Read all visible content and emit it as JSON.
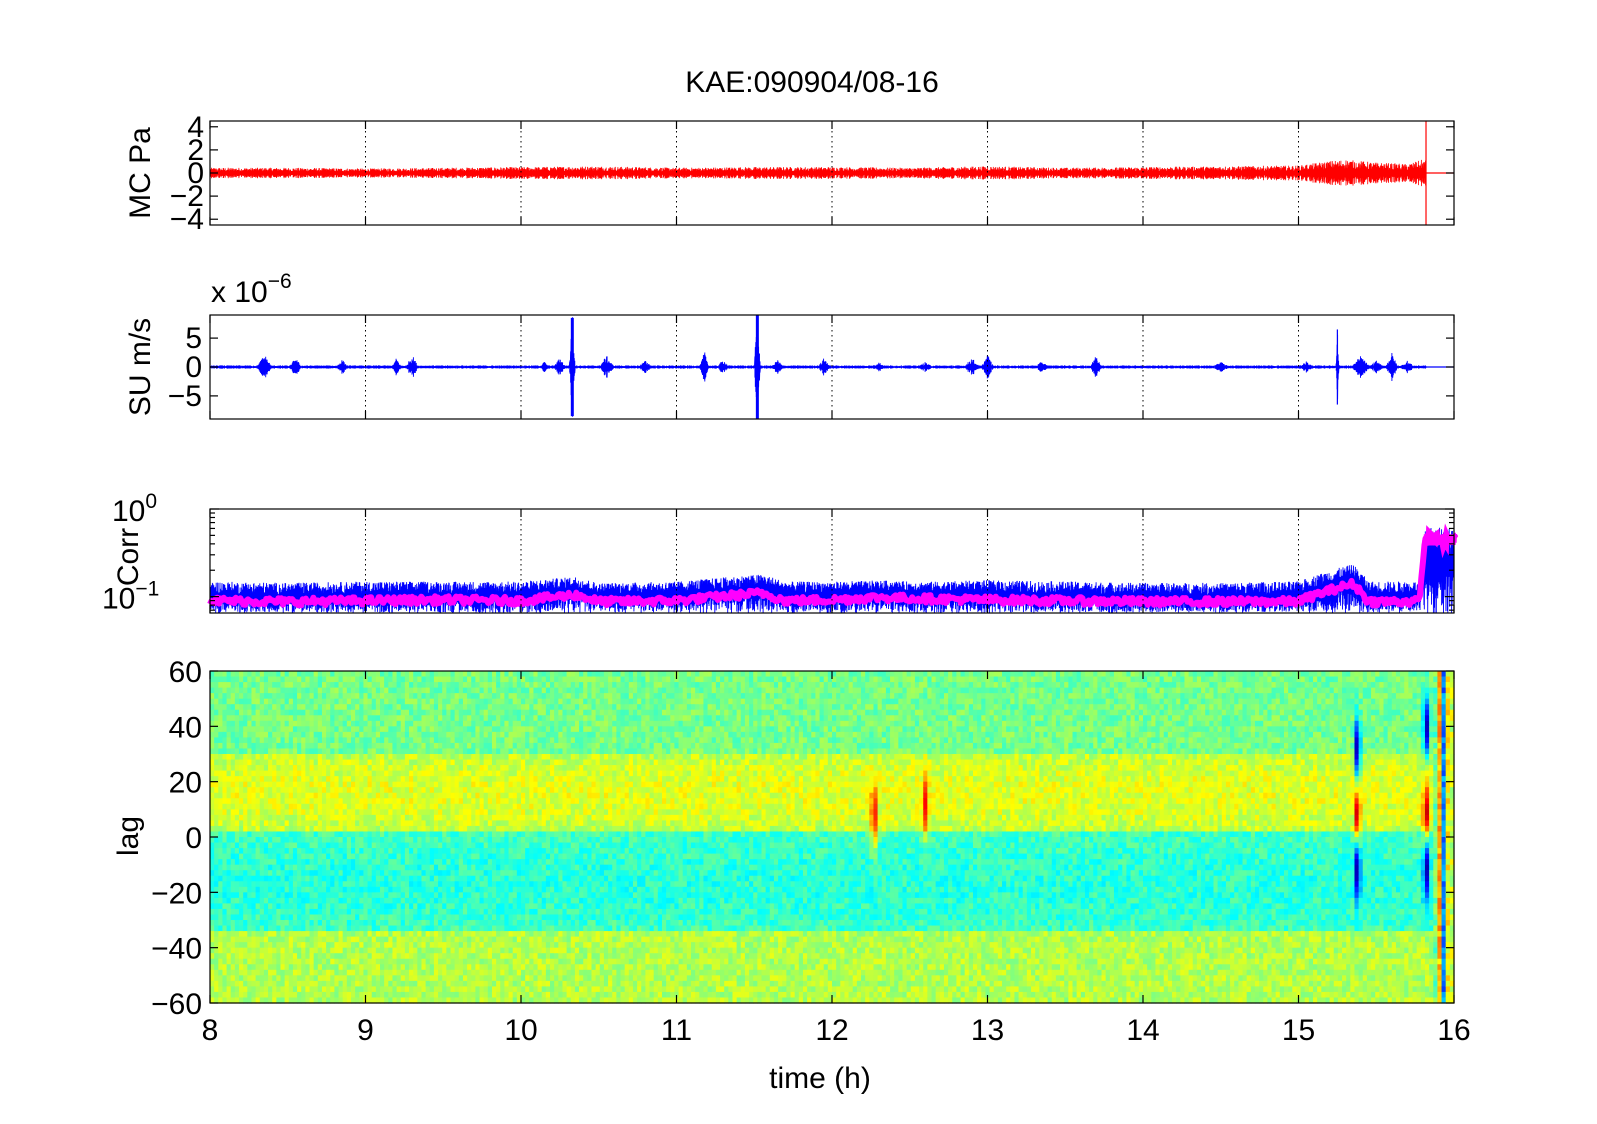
{
  "chart_data": [
    {
      "type": "line",
      "title": "KAE:090904/08-16",
      "ylabel": "MC Pa",
      "xlim": [
        8,
        16
      ],
      "ylim": [
        -4.5,
        4.5
      ],
      "yticks": [
        -4,
        -2,
        0,
        2,
        4
      ],
      "ytick_labels": [
        "−4",
        "−2",
        "0",
        "2",
        "4"
      ],
      "grid": "x",
      "series": [
        {
          "color": "#ff0000",
          "end_x": 15.82,
          "envelope": [
            [
              8.0,
              0.35
            ],
            [
              8.5,
              0.35
            ],
            [
              9.0,
              0.3
            ],
            [
              9.5,
              0.35
            ],
            [
              10.0,
              0.4
            ],
            [
              10.5,
              0.45
            ],
            [
              11.0,
              0.35
            ],
            [
              11.5,
              0.4
            ],
            [
              12.0,
              0.4
            ],
            [
              12.5,
              0.35
            ],
            [
              13.0,
              0.45
            ],
            [
              13.5,
              0.35
            ],
            [
              14.0,
              0.4
            ],
            [
              14.5,
              0.45
            ],
            [
              15.0,
              0.5
            ],
            [
              15.2,
              0.8
            ],
            [
              15.3,
              0.9
            ],
            [
              15.5,
              0.7
            ],
            [
              15.7,
              0.6
            ],
            [
              15.8,
              0.9
            ]
          ],
          "spike_x": 15.82,
          "spike_y": [
            -4.5,
            4.5
          ]
        }
      ]
    },
    {
      "type": "line",
      "ylabel": "SU m/s",
      "y_multiplier": "x 10",
      "y_exponent": "−6",
      "xlim": [
        8,
        16
      ],
      "ylim": [
        -9,
        9
      ],
      "yticks": [
        -5,
        0,
        5
      ],
      "ytick_labels": [
        "−5",
        "0",
        "5"
      ],
      "grid": "x",
      "series": [
        {
          "color": "#0000ff",
          "end_x": 15.82,
          "baseline_amp": 0.25,
          "bursts": [
            [
              8.35,
              2.0,
              0.05
            ],
            [
              8.55,
              1.5,
              0.04
            ],
            [
              8.85,
              1.2,
              0.04
            ],
            [
              9.2,
              1.5,
              0.03
            ],
            [
              9.3,
              2.0,
              0.04
            ],
            [
              10.15,
              0.9,
              0.03
            ],
            [
              10.25,
              1.5,
              0.04
            ],
            [
              10.33,
              8.5,
              0.02
            ],
            [
              10.55,
              1.8,
              0.05
            ],
            [
              10.8,
              1.0,
              0.05
            ],
            [
              11.18,
              2.5,
              0.03
            ],
            [
              11.3,
              1.2,
              0.04
            ],
            [
              11.52,
              9.0,
              0.02
            ],
            [
              11.65,
              1.2,
              0.04
            ],
            [
              11.95,
              1.5,
              0.04
            ],
            [
              12.3,
              0.8,
              0.05
            ],
            [
              12.6,
              0.8,
              0.05
            ],
            [
              12.9,
              1.5,
              0.05
            ],
            [
              13.0,
              2.0,
              0.04
            ],
            [
              13.35,
              0.9,
              0.05
            ],
            [
              13.7,
              2.0,
              0.04
            ],
            [
              14.5,
              0.8,
              0.06
            ],
            [
              15.05,
              0.9,
              0.05
            ],
            [
              15.25,
              6.5,
              0.01
            ],
            [
              15.4,
              1.8,
              0.06
            ],
            [
              15.5,
              1.0,
              0.05
            ],
            [
              15.6,
              2.3,
              0.04
            ],
            [
              15.7,
              1.0,
              0.05
            ]
          ]
        }
      ]
    },
    {
      "type": "line",
      "ylabel": "Corr",
      "y_scale": "log",
      "xlim": [
        8,
        16
      ],
      "ylim": [
        0.065,
        1.0
      ],
      "yticks": [
        0.1,
        1.0
      ],
      "ytick_base": "10",
      "ytick_exponents": [
        "−1",
        "0"
      ],
      "grid": "x",
      "series": [
        {
          "color": "#0000ff",
          "level": [
            [
              8.0,
              0.095
            ],
            [
              8.5,
              0.092
            ],
            [
              9.0,
              0.095
            ],
            [
              9.5,
              0.098
            ],
            [
              10.0,
              0.096
            ],
            [
              10.35,
              0.115
            ],
            [
              10.5,
              0.095
            ],
            [
              11.0,
              0.097
            ],
            [
              11.55,
              0.12
            ],
            [
              11.7,
              0.097
            ],
            [
              12.0,
              0.1
            ],
            [
              12.3,
              0.105
            ],
            [
              12.6,
              0.103
            ],
            [
              13.0,
              0.1
            ],
            [
              13.5,
              0.095
            ],
            [
              14.0,
              0.092
            ],
            [
              14.5,
              0.092
            ],
            [
              15.0,
              0.093
            ],
            [
              15.35,
              0.15
            ],
            [
              15.45,
              0.093
            ],
            [
              15.78,
              0.093
            ],
            [
              15.82,
              0.2
            ],
            [
              16.0,
              0.2
            ]
          ],
          "upper": [
            [
              8.0,
              0.14
            ],
            [
              8.5,
              0.135
            ],
            [
              9.0,
              0.14
            ],
            [
              9.5,
              0.14
            ],
            [
              10.0,
              0.14
            ],
            [
              10.35,
              0.16
            ],
            [
              10.5,
              0.135
            ],
            [
              11.0,
              0.14
            ],
            [
              11.55,
              0.17
            ],
            [
              11.7,
              0.14
            ],
            [
              12.0,
              0.14
            ],
            [
              12.3,
              0.145
            ],
            [
              12.6,
              0.14
            ],
            [
              13.0,
              0.145
            ],
            [
              13.5,
              0.14
            ],
            [
              14.0,
              0.135
            ],
            [
              14.5,
              0.135
            ],
            [
              15.0,
              0.14
            ],
            [
              15.35,
              0.22
            ],
            [
              15.45,
              0.14
            ],
            [
              15.78,
              0.14
            ],
            [
              15.82,
              0.55
            ],
            [
              16.0,
              0.55
            ]
          ],
          "lower": [
            [
              8.0,
              0.068
            ],
            [
              16.0,
              0.068
            ]
          ]
        },
        {
          "color": "#ff00ff",
          "level": [
            [
              8.0,
              0.09
            ],
            [
              8.5,
              0.088
            ],
            [
              9.0,
              0.09
            ],
            [
              9.5,
              0.092
            ],
            [
              10.0,
              0.09
            ],
            [
              10.35,
              0.105
            ],
            [
              10.5,
              0.088
            ],
            [
              11.0,
              0.09
            ],
            [
              11.55,
              0.11
            ],
            [
              11.7,
              0.09
            ],
            [
              12.0,
              0.092
            ],
            [
              12.3,
              0.098
            ],
            [
              12.6,
              0.095
            ],
            [
              13.0,
              0.092
            ],
            [
              13.5,
              0.09
            ],
            [
              14.0,
              0.088
            ],
            [
              14.5,
              0.088
            ],
            [
              15.0,
              0.088
            ],
            [
              15.35,
              0.14
            ],
            [
              15.45,
              0.088
            ],
            [
              15.78,
              0.088
            ],
            [
              15.82,
              0.45
            ],
            [
              16.0,
              0.45
            ]
          ]
        }
      ]
    },
    {
      "type": "heatmap",
      "ylabel": "lag",
      "xlabel": "time (h)",
      "xlim": [
        8,
        16
      ],
      "ylim": [
        -60,
        60
      ],
      "xticks": [
        8,
        9,
        10,
        11,
        12,
        13,
        14,
        15,
        16
      ],
      "xtick_labels": [
        "8",
        "9",
        "10",
        "11",
        "12",
        "13",
        "14",
        "15",
        "16"
      ],
      "yticks": [
        -60,
        -40,
        -20,
        0,
        20,
        40,
        60
      ],
      "ytick_labels": [
        "−60",
        "−40",
        "−20",
        "0",
        "20",
        "40",
        "60"
      ],
      "colormap": "jet",
      "features": [
        {
          "x": 12.27,
          "lag": 8,
          "value": 0.85
        },
        {
          "x": 12.6,
          "lag": 12,
          "value": 0.75
        },
        {
          "x": 15.38,
          "lag": 7,
          "value": 1.0
        },
        {
          "x": 15.38,
          "lag": 32,
          "value": -1.0
        },
        {
          "x": 15.38,
          "lag": -12,
          "value": -1.0
        },
        {
          "x": 15.82,
          "lag": 8,
          "value": 1.0
        },
        {
          "x": 15.82,
          "lag": 40,
          "value": -1.0
        },
        {
          "x": 15.82,
          "lag": -12,
          "value": -1.0
        }
      ]
    }
  ]
}
